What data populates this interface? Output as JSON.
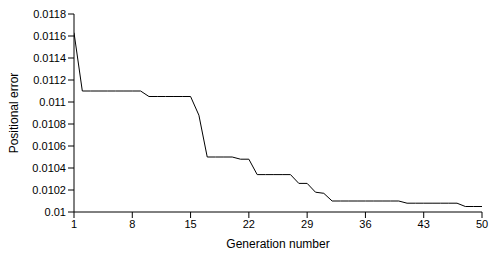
{
  "chart_data": {
    "type": "line",
    "x_label": "Generation number",
    "y_label": "Positional error",
    "x": [
      1,
      2,
      3,
      4,
      5,
      6,
      7,
      8,
      9,
      10,
      11,
      12,
      13,
      14,
      15,
      16,
      17,
      18,
      19,
      20,
      21,
      22,
      23,
      24,
      25,
      26,
      27,
      28,
      29,
      30,
      31,
      32,
      33,
      34,
      35,
      36,
      37,
      38,
      39,
      40,
      41,
      42,
      43,
      44,
      45,
      46,
      47,
      48,
      49,
      50
    ],
    "values": [
      0.01163,
      0.0111,
      0.0111,
      0.0111,
      0.0111,
      0.0111,
      0.0111,
      0.0111,
      0.0111,
      0.01105,
      0.01105,
      0.01105,
      0.01105,
      0.01105,
      0.01105,
      0.01088,
      0.0105,
      0.0105,
      0.0105,
      0.0105,
      0.01048,
      0.01048,
      0.01034,
      0.01034,
      0.01034,
      0.01034,
      0.01034,
      0.01026,
      0.01026,
      0.01018,
      0.01017,
      0.0101,
      0.0101,
      0.0101,
      0.0101,
      0.0101,
      0.0101,
      0.0101,
      0.0101,
      0.0101,
      0.01008,
      0.01008,
      0.01008,
      0.01008,
      0.01008,
      0.01008,
      0.01008,
      0.01005,
      0.01005,
      0.01005
    ],
    "color": "#000000",
    "xlim": [
      1,
      50
    ],
    "xticks": [
      1,
      8,
      15,
      22,
      29,
      36,
      43,
      50
    ],
    "ylim": [
      0.01,
      0.0118
    ],
    "yticks": [
      0.01,
      0.0102,
      0.0104,
      0.0106,
      0.0108,
      0.011,
      0.0112,
      0.0114,
      0.0116,
      0.0118
    ],
    "grid": false
  }
}
